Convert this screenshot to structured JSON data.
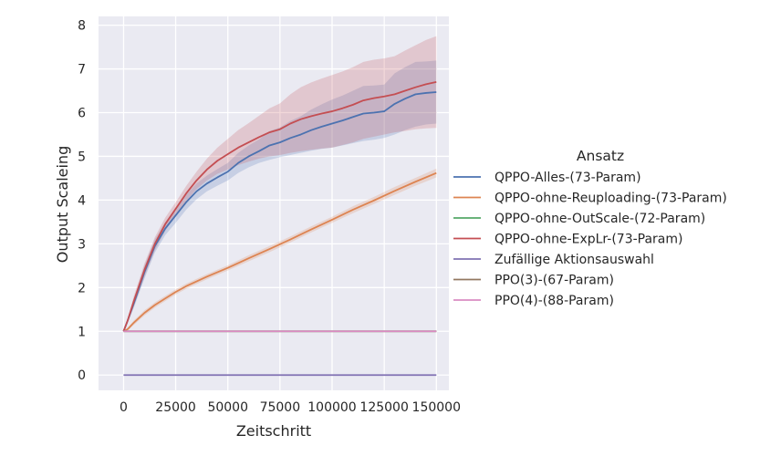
{
  "chart_data": {
    "type": "line",
    "xlabel": "Zeitschritt",
    "ylabel": "Output Scaleing",
    "xlim": [
      -12000,
      156000
    ],
    "ylim": [
      -0.35,
      8.2
    ],
    "xticks": [
      0,
      25000,
      50000,
      75000,
      100000,
      125000,
      150000
    ],
    "xtick_labels": [
      "0",
      "25000",
      "50000",
      "75000",
      "100000",
      "125000",
      "150000"
    ],
    "yticks": [
      0,
      1,
      2,
      3,
      4,
      5,
      6,
      7,
      8
    ],
    "ytick_labels": [
      "0",
      "1",
      "2",
      "3",
      "4",
      "5",
      "6",
      "7",
      "8"
    ],
    "grid": true,
    "legend_title": "Ansatz",
    "legend_placement": "right",
    "series": [
      {
        "name": "QPPO-Alles-(73-Param)",
        "color": "#4c72b0",
        "x": [
          0,
          2000,
          5000,
          10000,
          15000,
          20000,
          25000,
          30000,
          35000,
          40000,
          45000,
          50000,
          55000,
          60000,
          65000,
          70000,
          75000,
          80000,
          85000,
          90000,
          95000,
          100000,
          105000,
          110000,
          115000,
          120000,
          125000,
          130000,
          135000,
          140000,
          145000,
          150000
        ],
        "y": [
          1.0,
          1.25,
          1.65,
          2.35,
          2.95,
          3.35,
          3.65,
          3.95,
          4.2,
          4.38,
          4.52,
          4.65,
          4.85,
          5.0,
          5.12,
          5.25,
          5.32,
          5.42,
          5.5,
          5.6,
          5.68,
          5.75,
          5.82,
          5.9,
          5.98,
          6.0,
          6.03,
          6.2,
          6.32,
          6.42,
          6.45,
          6.47
        ],
        "lower": [
          1.0,
          1.2,
          1.55,
          2.2,
          2.8,
          3.2,
          3.48,
          3.78,
          4.02,
          4.2,
          4.33,
          4.45,
          4.62,
          4.75,
          4.85,
          4.92,
          4.98,
          5.03,
          5.08,
          5.13,
          5.17,
          5.2,
          5.25,
          5.3,
          5.35,
          5.38,
          5.42,
          5.5,
          5.6,
          5.68,
          5.73,
          5.75
        ],
        "upper": [
          1.0,
          1.3,
          1.75,
          2.5,
          3.1,
          3.5,
          3.82,
          4.12,
          4.38,
          4.56,
          4.71,
          4.85,
          5.08,
          5.25,
          5.39,
          5.58,
          5.66,
          5.81,
          5.92,
          6.07,
          6.19,
          6.3,
          6.39,
          6.5,
          6.61,
          6.62,
          6.64,
          6.9,
          7.04,
          7.16,
          7.17,
          7.19
        ]
      },
      {
        "name": "QPPO-ohne-Reuploading-(73-Param)",
        "color": "#dd8452",
        "x": [
          0,
          2000,
          5000,
          10000,
          15000,
          20000,
          25000,
          30000,
          40000,
          50000,
          60000,
          70000,
          80000,
          90000,
          100000,
          110000,
          120000,
          130000,
          140000,
          150000
        ],
        "y": [
          1.0,
          1.05,
          1.2,
          1.42,
          1.6,
          1.75,
          1.9,
          2.03,
          2.25,
          2.45,
          2.67,
          2.88,
          3.1,
          3.33,
          3.55,
          3.78,
          3.99,
          4.21,
          4.42,
          4.62
        ],
        "lower": [
          1.0,
          1.02,
          1.15,
          1.36,
          1.54,
          1.69,
          1.84,
          1.97,
          2.19,
          2.39,
          2.6,
          2.81,
          3.03,
          3.26,
          3.48,
          3.7,
          3.91,
          4.12,
          4.33,
          4.52
        ],
        "upper": [
          1.0,
          1.08,
          1.25,
          1.48,
          1.66,
          1.81,
          1.96,
          2.09,
          2.31,
          2.51,
          2.74,
          2.95,
          3.17,
          3.4,
          3.62,
          3.86,
          4.07,
          4.3,
          4.51,
          4.72
        ]
      },
      {
        "name": "QPPO-ohne-OutScale-(72-Param)",
        "color": "#55a868",
        "x": [
          0,
          150000
        ],
        "y": [
          1.0,
          1.0
        ]
      },
      {
        "name": "QPPO-ohne-ExpLr-(73-Param)",
        "color": "#c44e52",
        "x": [
          0,
          2000,
          5000,
          10000,
          15000,
          20000,
          25000,
          30000,
          35000,
          40000,
          45000,
          50000,
          55000,
          60000,
          65000,
          70000,
          75000,
          80000,
          85000,
          90000,
          95000,
          100000,
          105000,
          110000,
          115000,
          120000,
          125000,
          130000,
          135000,
          140000,
          145000,
          150000
        ],
        "y": [
          1.0,
          1.25,
          1.7,
          2.4,
          3.0,
          3.45,
          3.8,
          4.15,
          4.45,
          4.7,
          4.9,
          5.05,
          5.2,
          5.32,
          5.44,
          5.55,
          5.62,
          5.75,
          5.85,
          5.92,
          5.98,
          6.03,
          6.1,
          6.18,
          6.28,
          6.33,
          6.37,
          6.42,
          6.5,
          6.58,
          6.65,
          6.7
        ],
        "lower": [
          1.0,
          1.2,
          1.58,
          2.25,
          2.85,
          3.3,
          3.65,
          3.98,
          4.25,
          4.45,
          4.6,
          4.7,
          4.8,
          4.88,
          4.95,
          5.0,
          5.03,
          5.08,
          5.12,
          5.15,
          5.18,
          5.2,
          5.26,
          5.32,
          5.4,
          5.45,
          5.5,
          5.55,
          5.58,
          5.62,
          5.64,
          5.65
        ],
        "upper": [
          1.0,
          1.3,
          1.82,
          2.55,
          3.15,
          3.6,
          3.95,
          4.32,
          4.65,
          4.95,
          5.2,
          5.4,
          5.6,
          5.76,
          5.93,
          6.1,
          6.21,
          6.42,
          6.58,
          6.69,
          6.78,
          6.86,
          6.94,
          7.04,
          7.16,
          7.21,
          7.24,
          7.29,
          7.42,
          7.54,
          7.66,
          7.75
        ]
      },
      {
        "name": "Zufällige Aktionsauswahl",
        "color": "#8172b3",
        "x": [
          0,
          150000
        ],
        "y": [
          0.0,
          0.0
        ]
      },
      {
        "name": "PPO(3)-(67-Param)",
        "color": "#937860",
        "x": [
          0,
          150000
        ],
        "y": [
          1.0,
          1.0
        ]
      },
      {
        "name": "PPO(4)-(88-Param)",
        "color": "#da8bc3",
        "x": [
          0,
          150000
        ],
        "y": [
          1.0,
          1.0
        ]
      }
    ]
  }
}
